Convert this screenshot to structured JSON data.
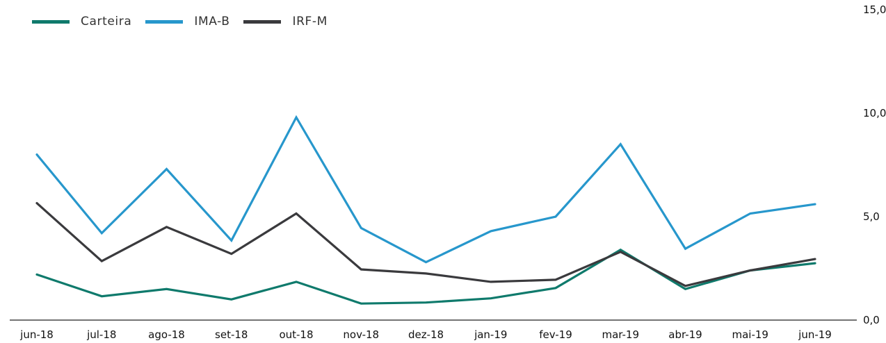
{
  "chart_data": {
    "type": "line",
    "categories": [
      "jun-18",
      "jul-18",
      "ago-18",
      "set-18",
      "out-18",
      "nov-18",
      "dez-18",
      "jan-19",
      "fev-19",
      "mar-19",
      "abr-19",
      "mai-19",
      "jun-19"
    ],
    "series": [
      {
        "name": "Carteira",
        "color": "#0f7a6c",
        "values": [
          2.2,
          1.15,
          1.5,
          1.0,
          1.85,
          0.8,
          0.85,
          1.05,
          1.55,
          3.4,
          1.5,
          2.4,
          2.75
        ]
      },
      {
        "name": "IMA-B",
        "color": "#2797cc",
        "values": [
          8.0,
          4.2,
          7.3,
          3.85,
          9.8,
          4.45,
          2.8,
          4.3,
          5.0,
          8.5,
          3.45,
          5.15,
          5.6
        ]
      },
      {
        "name": "IRF-M",
        "color": "#3a3a3d",
        "values": [
          5.65,
          2.85,
          4.5,
          3.2,
          5.15,
          2.45,
          2.25,
          1.85,
          1.95,
          3.3,
          1.65,
          2.4,
          2.95
        ]
      }
    ],
    "y_ticks": [
      "0,0",
      "5,0",
      "10,0",
      "15,0"
    ],
    "ylim": [
      0,
      15
    ],
    "grid": false,
    "legend_position": "top-left",
    "title": "",
    "xlabel": "",
    "ylabel": ""
  }
}
